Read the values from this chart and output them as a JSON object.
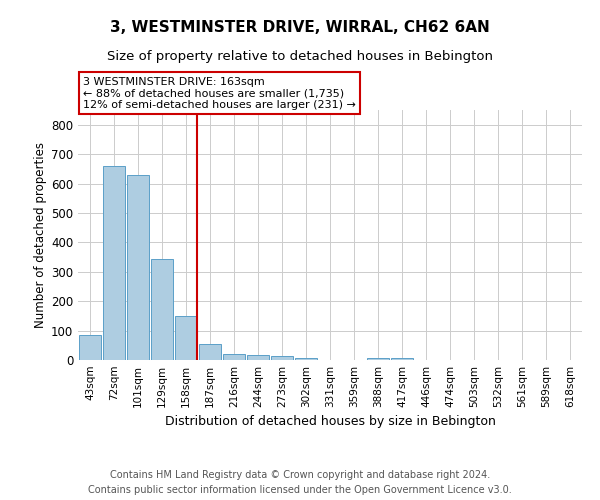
{
  "title": "3, WESTMINSTER DRIVE, WIRRAL, CH62 6AN",
  "subtitle": "Size of property relative to detached houses in Bebington",
  "xlabel": "Distribution of detached houses by size in Bebington",
  "ylabel": "Number of detached properties",
  "footnote1": "Contains HM Land Registry data © Crown copyright and database right 2024.",
  "footnote2": "Contains public sector information licensed under the Open Government Licence v3.0.",
  "categories": [
    "43sqm",
    "72sqm",
    "101sqm",
    "129sqm",
    "158sqm",
    "187sqm",
    "216sqm",
    "244sqm",
    "273sqm",
    "302sqm",
    "331sqm",
    "359sqm",
    "388sqm",
    "417sqm",
    "446sqm",
    "474sqm",
    "503sqm",
    "532sqm",
    "561sqm",
    "589sqm",
    "618sqm"
  ],
  "values": [
    85,
    660,
    630,
    345,
    150,
    55,
    22,
    18,
    12,
    6,
    0,
    0,
    7,
    7,
    0,
    0,
    0,
    0,
    0,
    0,
    0
  ],
  "bar_color": "#aecde1",
  "bar_edge_color": "#5b9fc8",
  "highlight_index": 4,
  "property_label": "3 WESTMINSTER DRIVE: 163sqm",
  "stat1": "← 88% of detached houses are smaller (1,735)",
  "stat2": "12% of semi-detached houses are larger (231) →",
  "annotation_box_color": "#ffffff",
  "annotation_box_edge": "#cc0000",
  "red_line_color": "#cc0000",
  "ylim": [
    0,
    850
  ],
  "yticks": [
    0,
    100,
    200,
    300,
    400,
    500,
    600,
    700,
    800
  ],
  "background_color": "#ffffff",
  "grid_color": "#cccccc"
}
